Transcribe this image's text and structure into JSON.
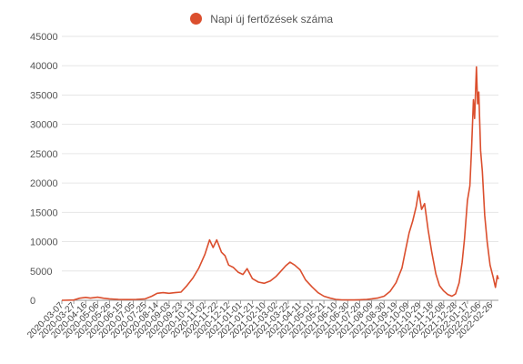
{
  "chart_data": {
    "type": "line",
    "legend": {
      "label": "Napi új fertőzések száma",
      "position": "top-center"
    },
    "ylim": [
      0,
      45000
    ],
    "yticks": [
      0,
      5000,
      10000,
      15000,
      20000,
      25000,
      30000,
      35000,
      40000,
      45000
    ],
    "grid": true,
    "colors": {
      "series": "#db4f2e",
      "grid": "#e6e6e6",
      "axis": "#999999"
    },
    "xlim": [
      "2020-03-07",
      "2022-03-10"
    ],
    "xtick_labels": [
      "2020-03-07",
      "2020-03-27",
      "2020-04-16",
      "2020-05-06",
      "2020-05-26",
      "2020-06-15",
      "2020-07-05",
      "2020-07-25",
      "2020-08-14",
      "2020-09-03",
      "2020-09-23",
      "2020-10-13",
      "2020-11-02",
      "2020-11-22",
      "2020-12-12",
      "2021-01-01",
      "2021-01-21",
      "2021-02-10",
      "2021-03-02",
      "2021-03-22",
      "2021-04-11",
      "2021-05-01",
      "2021-05-21",
      "2021-06-10",
      "2021-06-30",
      "2021-07-20",
      "2021-08-09",
      "2021-08-30",
      "2021-09-19",
      "2021-10-09",
      "2021-10-29",
      "2021-11-18",
      "2021-12-08",
      "2021-12-28",
      "2022-01-17",
      "2022-02-06",
      "2022-02-26"
    ],
    "series": [
      {
        "name": "Napi új fertőzések száma",
        "points": [
          [
            "2020-03-07",
            0
          ],
          [
            "2020-03-27",
            50
          ],
          [
            "2020-04-06",
            350
          ],
          [
            "2020-04-16",
            500
          ],
          [
            "2020-04-24",
            380
          ],
          [
            "2020-05-06",
            520
          ],
          [
            "2020-05-16",
            350
          ],
          [
            "2020-05-26",
            250
          ],
          [
            "2020-06-10",
            150
          ],
          [
            "2020-06-25",
            120
          ],
          [
            "2020-07-10",
            150
          ],
          [
            "2020-07-25",
            250
          ],
          [
            "2020-08-05",
            700
          ],
          [
            "2020-08-14",
            1200
          ],
          [
            "2020-08-24",
            1300
          ],
          [
            "2020-09-03",
            1200
          ],
          [
            "2020-09-13",
            1300
          ],
          [
            "2020-09-23",
            1400
          ],
          [
            "2020-10-03",
            2500
          ],
          [
            "2020-10-13",
            3800
          ],
          [
            "2020-10-23",
            5500
          ],
          [
            "2020-11-02",
            7800
          ],
          [
            "2020-11-10",
            10300
          ],
          [
            "2020-11-16",
            9000
          ],
          [
            "2020-11-22",
            10300
          ],
          [
            "2020-11-30",
            8200
          ],
          [
            "2020-12-06",
            7600
          ],
          [
            "2020-12-12",
            6000
          ],
          [
            "2020-12-20",
            5600
          ],
          [
            "2020-12-28",
            4800
          ],
          [
            "2021-01-05",
            4400
          ],
          [
            "2021-01-12",
            5400
          ],
          [
            "2021-01-21",
            3700
          ],
          [
            "2021-01-31",
            3100
          ],
          [
            "2021-02-10",
            2900
          ],
          [
            "2021-02-20",
            3300
          ],
          [
            "2021-03-02",
            4100
          ],
          [
            "2021-03-10",
            5000
          ],
          [
            "2021-03-18",
            5900
          ],
          [
            "2021-03-25",
            6500
          ],
          [
            "2021-04-02",
            6000
          ],
          [
            "2021-04-11",
            5200
          ],
          [
            "2021-04-20",
            3500
          ],
          [
            "2021-05-01",
            2300
          ],
          [
            "2021-05-11",
            1300
          ],
          [
            "2021-05-21",
            700
          ],
          [
            "2021-06-01",
            350
          ],
          [
            "2021-06-10",
            150
          ],
          [
            "2021-06-20",
            80
          ],
          [
            "2021-06-30",
            60
          ],
          [
            "2021-07-10",
            60
          ],
          [
            "2021-07-20",
            100
          ],
          [
            "2021-08-01",
            150
          ],
          [
            "2021-08-09",
            250
          ],
          [
            "2021-08-20",
            400
          ],
          [
            "2021-08-30",
            700
          ],
          [
            "2021-09-09",
            1500
          ],
          [
            "2021-09-19",
            3000
          ],
          [
            "2021-09-29",
            5500
          ],
          [
            "2021-10-05",
            8500
          ],
          [
            "2021-10-11",
            11500
          ],
          [
            "2021-10-17",
            13500
          ],
          [
            "2021-10-23",
            16000
          ],
          [
            "2021-10-27",
            18600
          ],
          [
            "2021-11-01",
            15500
          ],
          [
            "2021-11-06",
            16500
          ],
          [
            "2021-11-12",
            12000
          ],
          [
            "2021-11-18",
            8200
          ],
          [
            "2021-11-25",
            4500
          ],
          [
            "2021-12-01",
            2500
          ],
          [
            "2021-12-08",
            1600
          ],
          [
            "2021-12-15",
            1000
          ],
          [
            "2021-12-22",
            700
          ],
          [
            "2021-12-28",
            1100
          ],
          [
            "2022-01-03",
            3000
          ],
          [
            "2022-01-08",
            6500
          ],
          [
            "2022-01-12",
            10500
          ],
          [
            "2022-01-17",
            17000
          ],
          [
            "2022-01-21",
            19500
          ],
          [
            "2022-01-24",
            26000
          ],
          [
            "2022-01-27",
            34200
          ],
          [
            "2022-01-29",
            31000
          ],
          [
            "2022-02-01",
            39800
          ],
          [
            "2022-02-03",
            33500
          ],
          [
            "2022-02-05",
            35500
          ],
          [
            "2022-02-08",
            25500
          ],
          [
            "2022-02-11",
            22000
          ],
          [
            "2022-02-15",
            14500
          ],
          [
            "2022-02-19",
            10000
          ],
          [
            "2022-02-24",
            6000
          ],
          [
            "2022-03-01",
            4000
          ],
          [
            "2022-03-05",
            2200
          ],
          [
            "2022-03-08",
            4200
          ],
          [
            "2022-03-10",
            3600
          ]
        ]
      }
    ]
  }
}
